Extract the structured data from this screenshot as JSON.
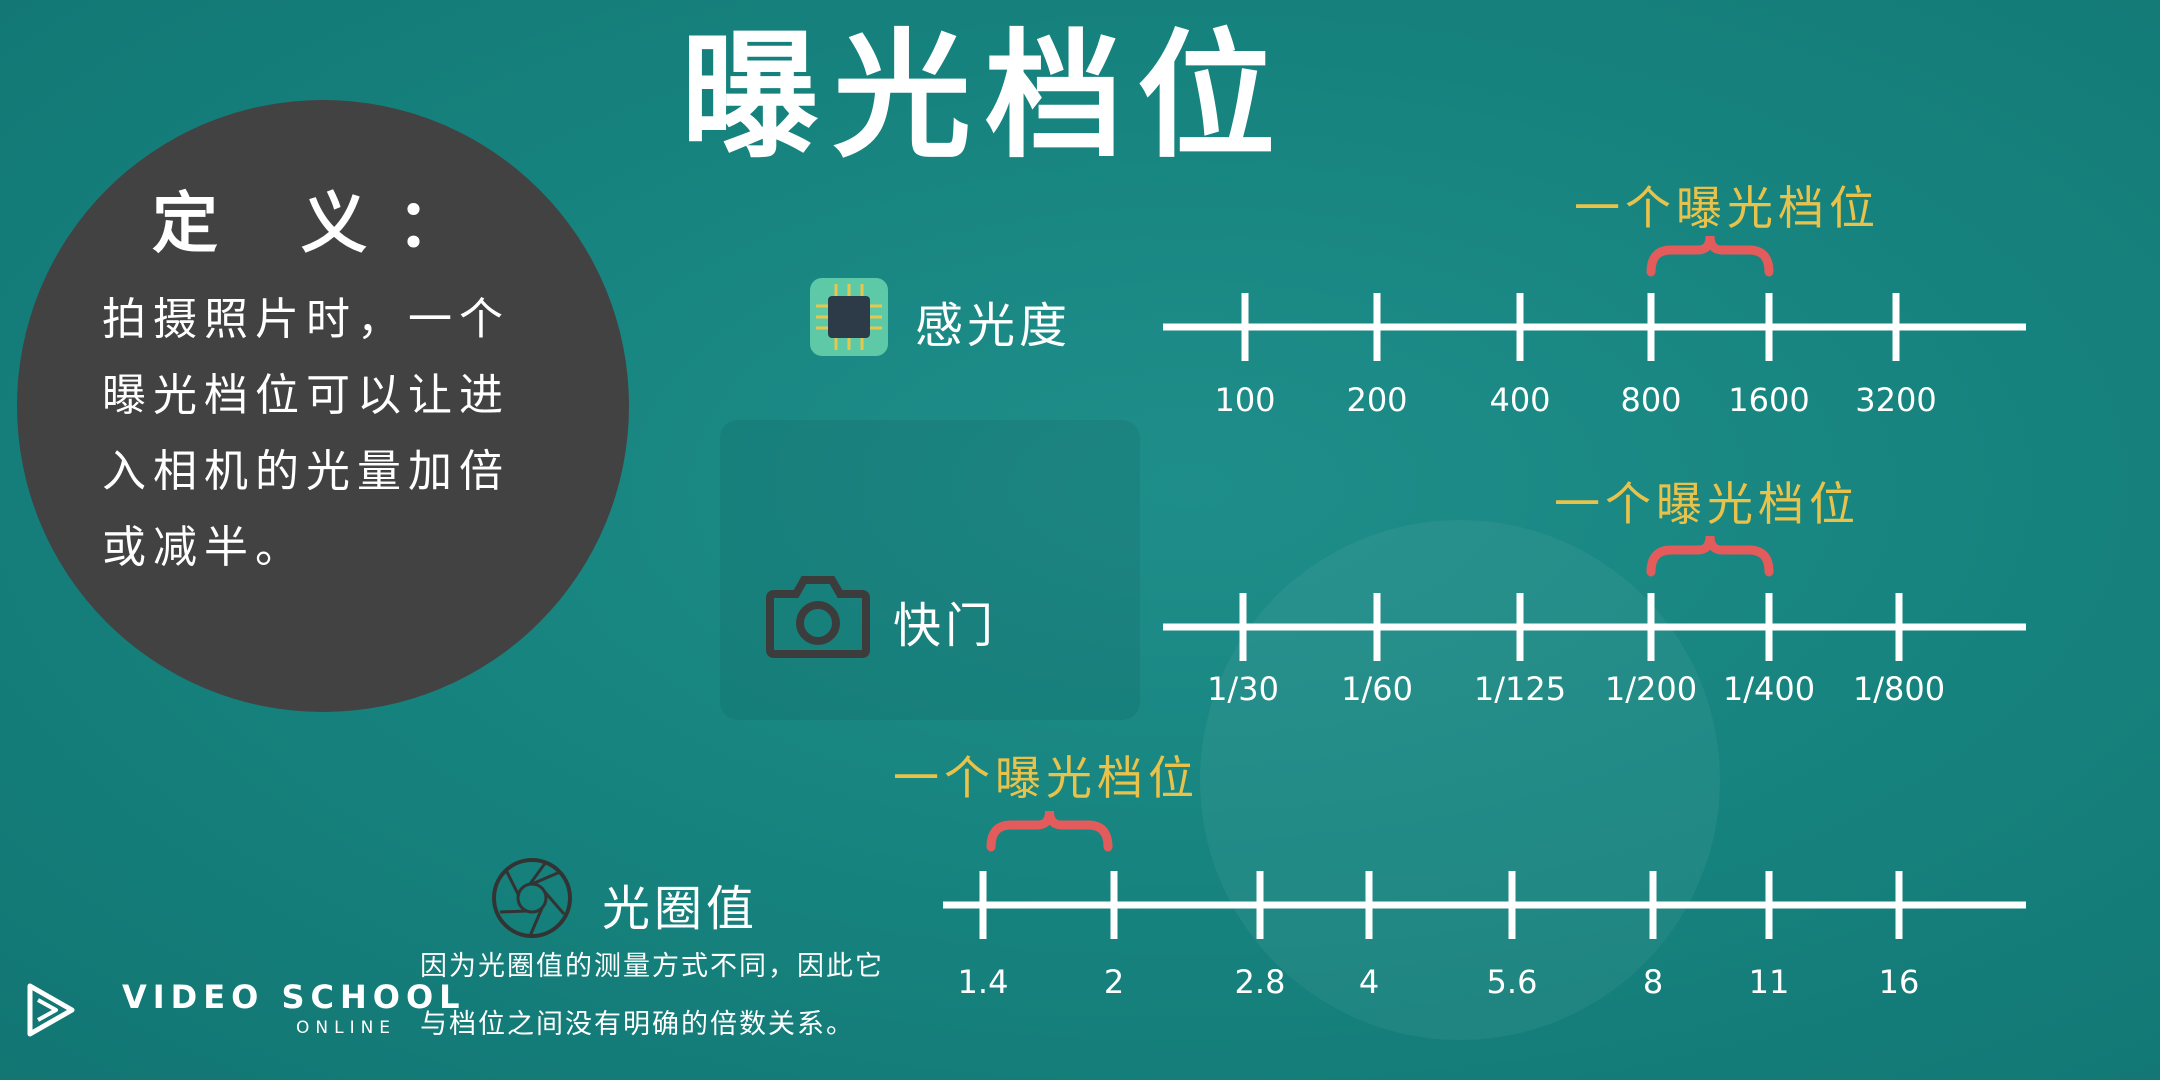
{
  "title": "曝光档位",
  "definition": {
    "heading": "定 义：",
    "body": "拍摄照片时，一个曝光档位可以让进入相机的光量加倍或减半。"
  },
  "rows": [
    {
      "icon": "chip-icon",
      "label": "感光度",
      "callout": "一个曝光档位",
      "ticks": [
        "100",
        "200",
        "400",
        "800",
        "1600",
        "3200"
      ]
    },
    {
      "icon": "camera-icon",
      "label": "快门",
      "callout": "一个曝光档位",
      "ticks": [
        "1/30",
        "1/60",
        "1/125",
        "1/200",
        "1/400",
        "1/800"
      ]
    },
    {
      "icon": "aperture-icon",
      "label": "光圈值",
      "callout": "一个曝光档位",
      "ticks": [
        "1.4",
        "2",
        "2.8",
        "4",
        "5.6",
        "8",
        "11",
        "16"
      ]
    }
  ],
  "aperture_note": {
    "line1": "因为光圈值的测量方式不同，因此它",
    "line2": "与档位之间没有明确的倍数关系。"
  },
  "brand": {
    "name": "VIDEO SCHOOL",
    "sub": "ONLINE"
  },
  "colors": {
    "background": "#17847f",
    "callout": "#e8c24a",
    "brace": "#e35b5b",
    "circle": "#424242"
  }
}
